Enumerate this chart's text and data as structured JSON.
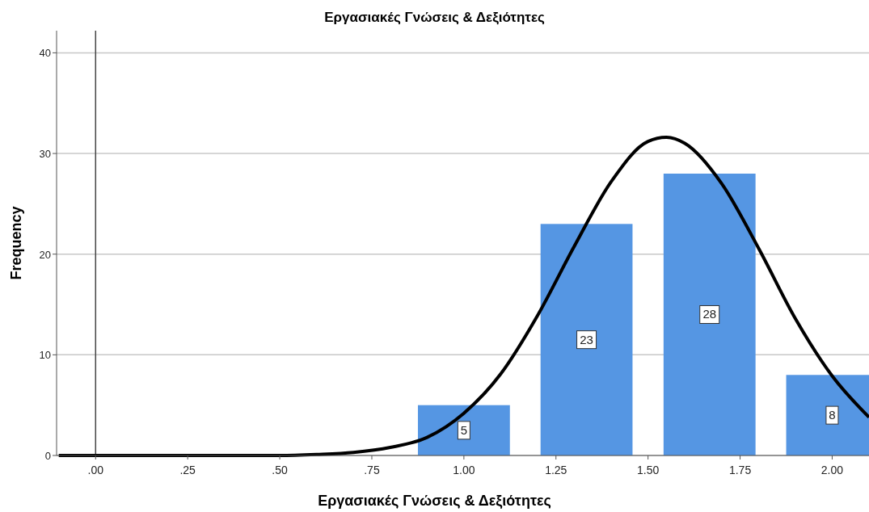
{
  "chart_data": {
    "type": "bar",
    "title": "Εργασιακές Γνώσεις & Δεξιότητες",
    "xlabel": "Εργασιακές Γνώσεις & Δεξιότητες",
    "ylabel": "Frequency",
    "x": [
      1.0,
      1.333,
      1.667,
      2.0
    ],
    "series": [
      {
        "color": "#5596e3",
        "values": [
          5,
          23,
          28,
          8
        ],
        "value_labels": [
          "5",
          "23",
          "28",
          "8"
        ]
      },
      {
        "type": "line",
        "color": "#000000",
        "marker": "none",
        "x": [
          -0.1,
          0.3,
          0.5,
          0.6,
          0.7,
          0.8,
          0.9,
          1.0,
          1.1,
          1.2,
          1.3,
          1.4,
          1.5,
          1.55,
          1.6,
          1.7,
          1.8,
          1.9,
          2.0,
          2.1
        ],
        "values": [
          0,
          0,
          0,
          0.1,
          0.3,
          0.8,
          1.8,
          4.2,
          8.1,
          13.9,
          20.8,
          27.2,
          31.2,
          31.6,
          31.0,
          27.0,
          20.6,
          13.6,
          7.9,
          3.8
        ]
      }
    ],
    "xlim": [
      -0.106,
      2.1
    ],
    "ylim": [
      0,
      42.2
    ],
    "xticks": [
      {
        "value": 0,
        "label": ".00"
      },
      {
        "value": 0.25,
        "label": ".25"
      },
      {
        "value": 0.5,
        "label": ".50"
      },
      {
        "value": 0.75,
        "label": ".75"
      },
      {
        "value": 1,
        "label": "1.00"
      },
      {
        "value": 1.25,
        "label": "1.25"
      },
      {
        "value": 1.5,
        "label": "1.50"
      },
      {
        "value": 1.75,
        "label": "1.75"
      },
      {
        "value": 2,
        "label": "2.00"
      }
    ],
    "yticks": [
      0,
      10,
      20,
      30,
      40
    ],
    "ref_lines": [
      {
        "axis": "x",
        "value": 0,
        "color": "#444444"
      }
    ],
    "grid": "y"
  }
}
